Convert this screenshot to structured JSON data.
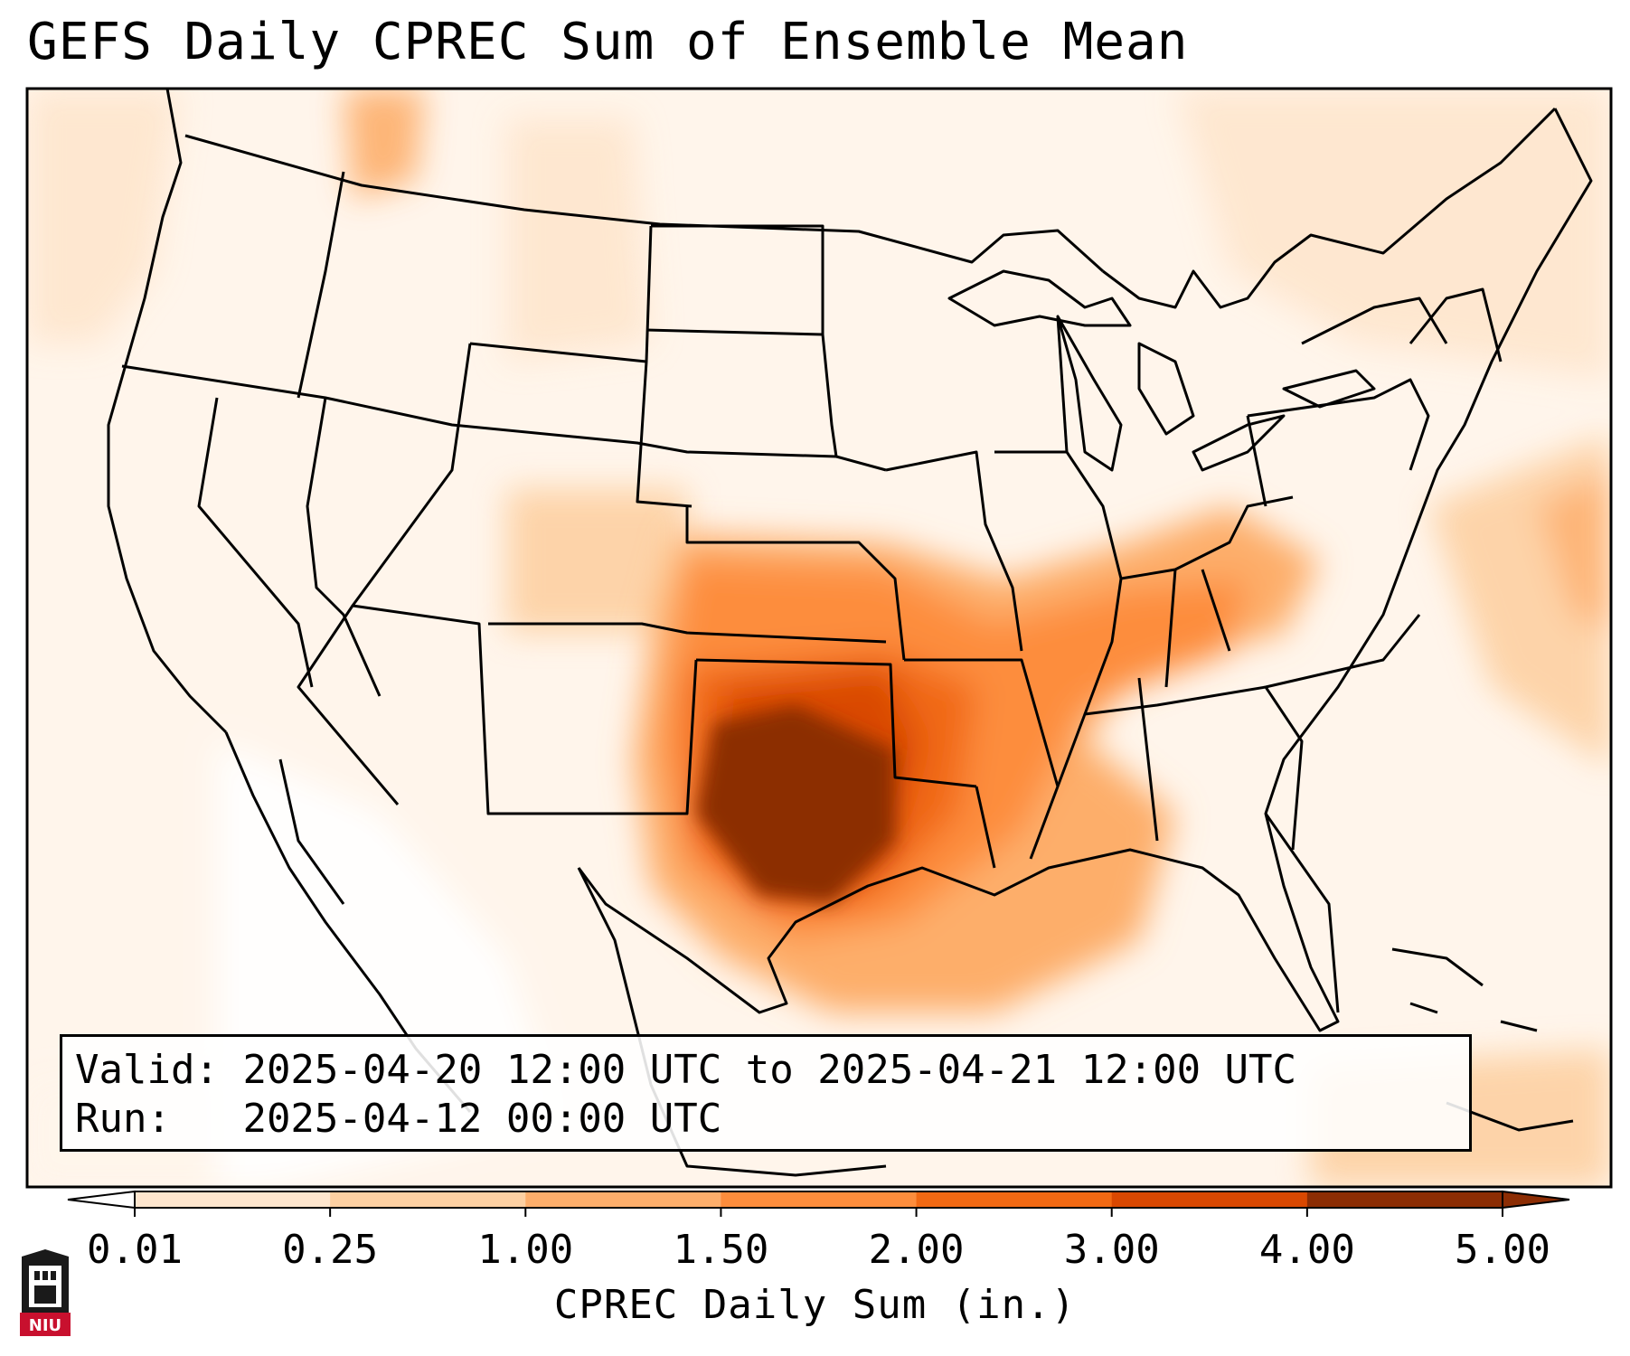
{
  "title": "GEFS Daily CPREC Sum of Ensemble Mean",
  "info": {
    "valid_label": "Valid:",
    "valid_value": "2025-04-20 12:00 UTC to 2025-04-21 12:00 UTC",
    "run_label": "Run:",
    "run_value": "2025-04-12 00:00 UTC"
  },
  "colorbar": {
    "label": "CPREC Daily Sum (in.)",
    "ticks": [
      "0.01",
      "0.25",
      "1.00",
      "1.50",
      "2.00",
      "3.00",
      "4.00",
      "5.00"
    ],
    "colors": [
      "#fff5eb",
      "#fee6ce",
      "#fdd0a2",
      "#fdae6b",
      "#fd8d3c",
      "#f16913",
      "#d94801",
      "#8c2d04"
    ]
  },
  "logo": {
    "text": "NIU"
  },
  "icons": {
    "logo": "niu-university-logo-icon"
  }
}
